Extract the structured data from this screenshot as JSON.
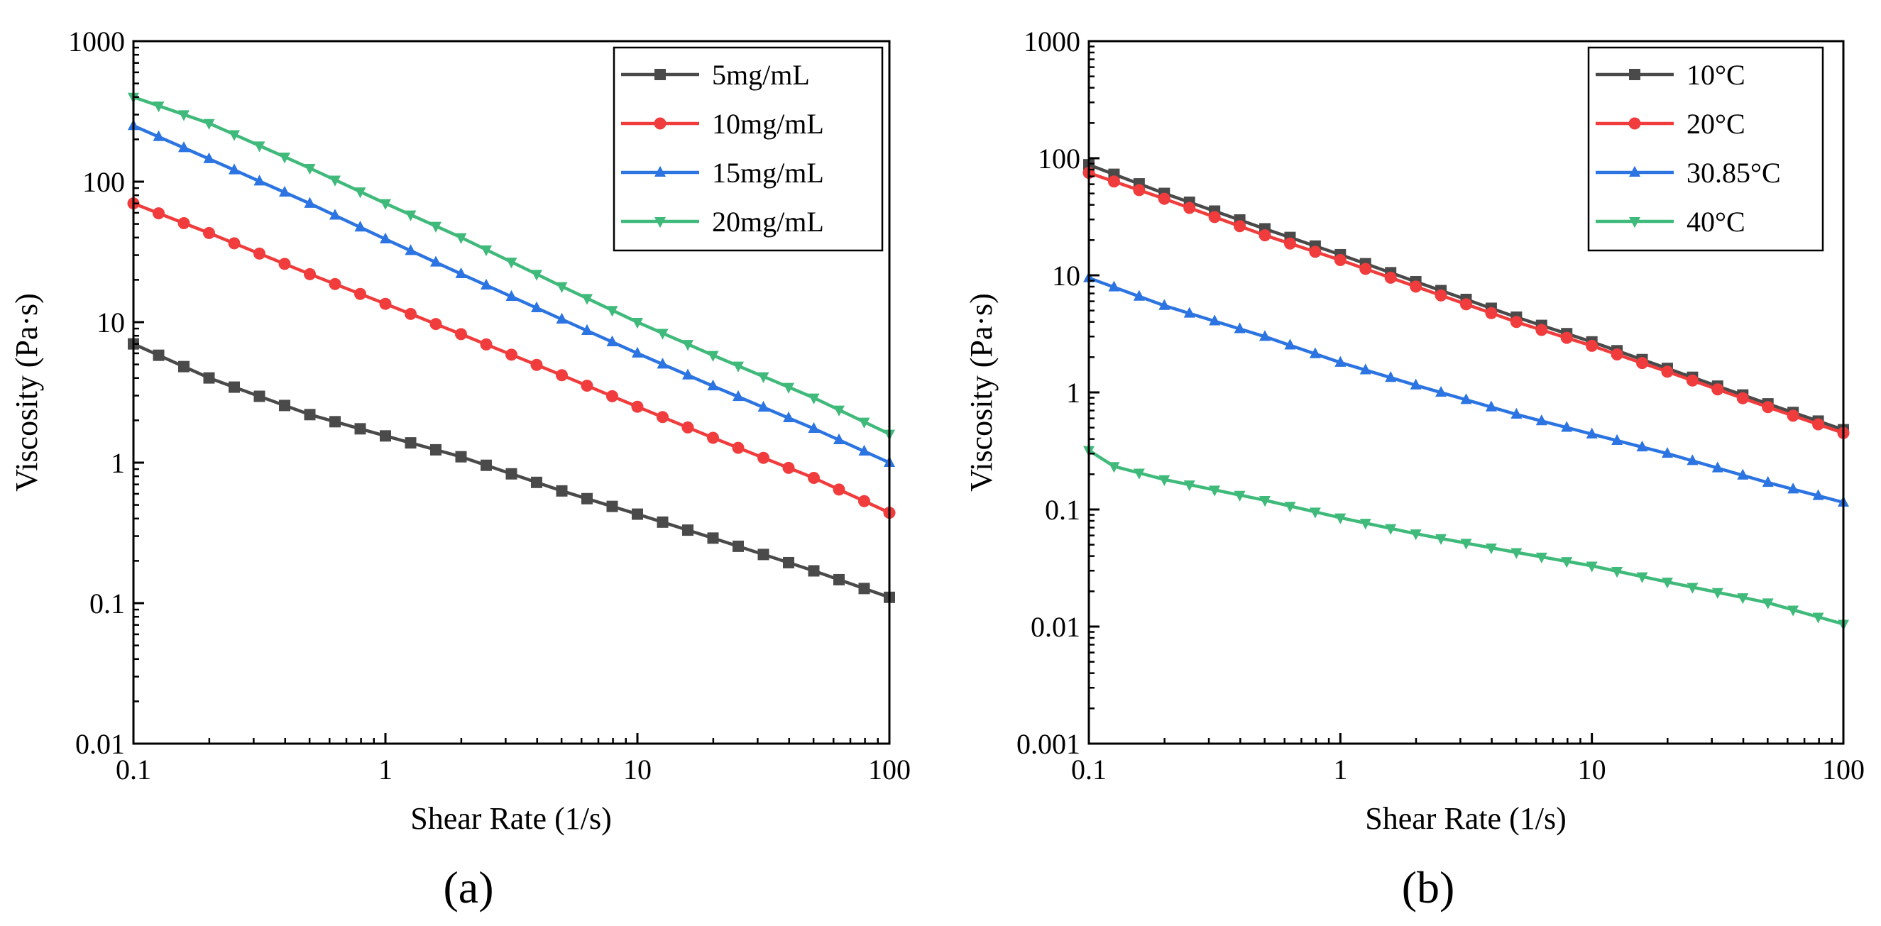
{
  "figure": {
    "panels": [
      "(a)",
      "(b)"
    ]
  },
  "chart_data": [
    {
      "type": "line",
      "panel_label": "(a)",
      "xscale": "log",
      "yscale": "log",
      "xlabel": "Shear Rate (1/s)",
      "ylabel": "Viscosity (Pa·s)",
      "xlim": [
        0.1,
        100
      ],
      "ylim": [
        0.01,
        1000
      ],
      "xticks": [
        0.1,
        1,
        10,
        100
      ],
      "xtick_labels": [
        "0.1",
        "1",
        "10",
        "100"
      ],
      "yticks": [
        0.01,
        0.1,
        1,
        10,
        100,
        1000
      ],
      "ytick_labels": [
        "0.01",
        "0.1",
        "1",
        "10",
        "100",
        "1000"
      ],
      "grid": false,
      "legend_position": "top-right",
      "series": [
        {
          "name": "5mg/mL",
          "marker": "square",
          "color": "#4a4a4a",
          "x": [
            0.1,
            0.2,
            0.5,
            1,
            2,
            5,
            10,
            20,
            50,
            100
          ],
          "values": [
            7.0,
            4.0,
            2.2,
            1.55,
            1.1,
            0.63,
            0.43,
            0.29,
            0.17,
            0.11
          ]
        },
        {
          "name": "10mg/mL",
          "marker": "circle",
          "color": "#f03c3c",
          "x": [
            0.1,
            0.2,
            0.5,
            1,
            2,
            5,
            10,
            20,
            50,
            100
          ],
          "values": [
            70,
            43,
            22,
            13.5,
            8.2,
            4.2,
            2.5,
            1.5,
            0.78,
            0.44
          ]
        },
        {
          "name": "15mg/mL",
          "marker": "triangle-up",
          "color": "#2b74e2",
          "x": [
            0.1,
            0.2,
            0.5,
            1,
            2,
            5,
            10,
            20,
            50,
            100
          ],
          "values": [
            250,
            145,
            70,
            39,
            22,
            10.5,
            6.0,
            3.5,
            1.75,
            1.0
          ]
        },
        {
          "name": "20mg/mL",
          "marker": "triangle-down",
          "color": "#3fba7a",
          "x": [
            0.1,
            0.2,
            0.5,
            1,
            2,
            5,
            10,
            20,
            50,
            100
          ],
          "values": [
            400,
            260,
            125,
            70,
            40,
            18,
            10,
            5.8,
            2.9,
            1.6
          ]
        }
      ]
    },
    {
      "type": "line",
      "panel_label": "(b)",
      "xscale": "log",
      "yscale": "log",
      "xlabel": "Shear Rate (1/s)",
      "ylabel": "Viscosity (Pa·s)",
      "xlim": [
        0.1,
        100
      ],
      "ylim": [
        0.001,
        1000
      ],
      "xticks": [
        0.1,
        1,
        10,
        100
      ],
      "xtick_labels": [
        "0.1",
        "1",
        "10",
        "100"
      ],
      "yticks": [
        0.001,
        0.01,
        0.1,
        1,
        10,
        100,
        1000
      ],
      "ytick_labels": [
        "0.001",
        "0.01",
        "0.1",
        "1",
        "10",
        "100",
        "1000"
      ],
      "grid": false,
      "legend_position": "top-right",
      "series": [
        {
          "name": "10°C",
          "marker": "square",
          "color": "#4a4a4a",
          "x": [
            0.1,
            0.2,
            0.5,
            1,
            2,
            5,
            10,
            20,
            50,
            100
          ],
          "values": [
            88,
            50,
            25,
            15,
            8.8,
            4.4,
            2.7,
            1.6,
            0.8,
            0.48
          ]
        },
        {
          "name": "20°C",
          "marker": "circle",
          "color": "#f03c3c",
          "x": [
            0.1,
            0.2,
            0.5,
            1,
            2,
            5,
            10,
            20,
            50,
            100
          ],
          "values": [
            75,
            45,
            22,
            13.5,
            8.0,
            4.0,
            2.5,
            1.5,
            0.75,
            0.45
          ]
        },
        {
          "name": "30.85°C",
          "marker": "triangle-up",
          "color": "#2b74e2",
          "x": [
            0.1,
            0.2,
            0.5,
            1,
            2,
            5,
            10,
            20,
            50,
            100
          ],
          "values": [
            9.5,
            5.5,
            3.0,
            1.8,
            1.15,
            0.65,
            0.44,
            0.3,
            0.17,
            0.115
          ]
        },
        {
          "name": "40°C",
          "marker": "triangle-down",
          "color": "#3fba7a",
          "x": [
            0.1,
            0.12,
            0.2,
            0.5,
            1,
            2,
            5,
            10,
            20,
            50,
            100
          ],
          "values": [
            0.32,
            0.24,
            0.18,
            0.12,
            0.085,
            0.062,
            0.043,
            0.033,
            0.024,
            0.016,
            0.0105
          ]
        }
      ]
    }
  ]
}
